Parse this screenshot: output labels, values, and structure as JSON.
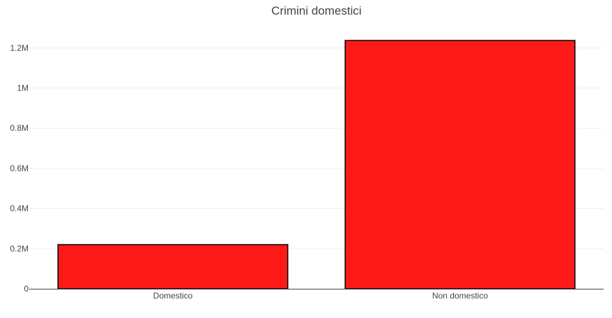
{
  "chart_data": {
    "type": "bar",
    "title": "Crimini domestici",
    "xlabel": "",
    "ylabel": "",
    "categories": [
      "Domestico",
      "Non domestico"
    ],
    "values": [
      220000,
      1237000
    ],
    "ylim": [
      0,
      1300000
    ],
    "yticks": [
      0,
      200000,
      400000,
      600000,
      800000,
      1000000,
      1200000
    ],
    "ytick_labels": [
      "0",
      "0.2M",
      "0.4M",
      "0.6M",
      "0.8M",
      "1M",
      "1.2M"
    ],
    "bar_color": "#ff1a1a",
    "bar_edge_color": "#000000",
    "grid": true,
    "legend": "none"
  }
}
